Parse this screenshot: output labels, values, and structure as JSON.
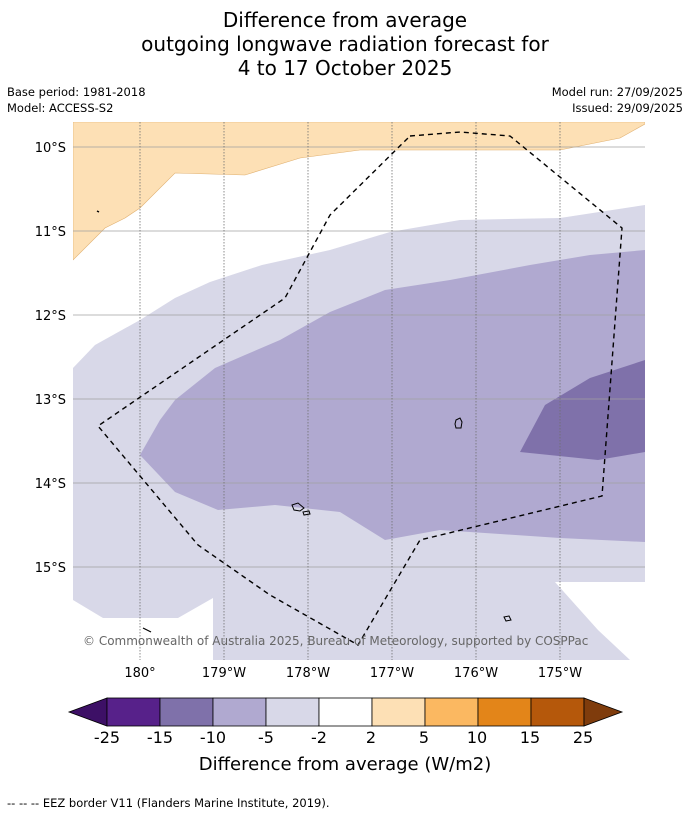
{
  "title": {
    "line1": "Difference from average",
    "line2": "outgoing longwave radiation forecast for",
    "line3": "4 to 17 October 2025"
  },
  "meta": {
    "base_period": "Base period: 1981-2018",
    "model": "Model: ACCESS-S2",
    "model_run": "Model run: 27/09/2025",
    "issued": "Issued: 29/09/2025"
  },
  "map": {
    "lat_labels": [
      "10°S",
      "11°S",
      "12°S",
      "13°S",
      "14°S",
      "15°S"
    ],
    "lon_labels": [
      "180°",
      "179°W",
      "178°W",
      "177°W",
      "176°W",
      "175°W"
    ],
    "copyright": "© Commonwealth of Australia 2025, Bureau of Meteorology, supported by COSPPac"
  },
  "colorbar": {
    "ticks": [
      "-25",
      "-15",
      "-10",
      "-5",
      "-2",
      "2",
      "5",
      "10",
      "15",
      "25"
    ],
    "colors": [
      "#3d1066",
      "#57218a",
      "#7f71aa",
      "#b0a9d0",
      "#d8d8e8",
      "#ffffff",
      "#fde0b5",
      "#fbb861",
      "#e38519",
      "#b5580b",
      "#7f3c0c"
    ],
    "label": "Difference from average (W/m2)"
  },
  "footnote": "--  --  -- EEZ border V11 (Flanders Marine Institute, 2019)."
}
